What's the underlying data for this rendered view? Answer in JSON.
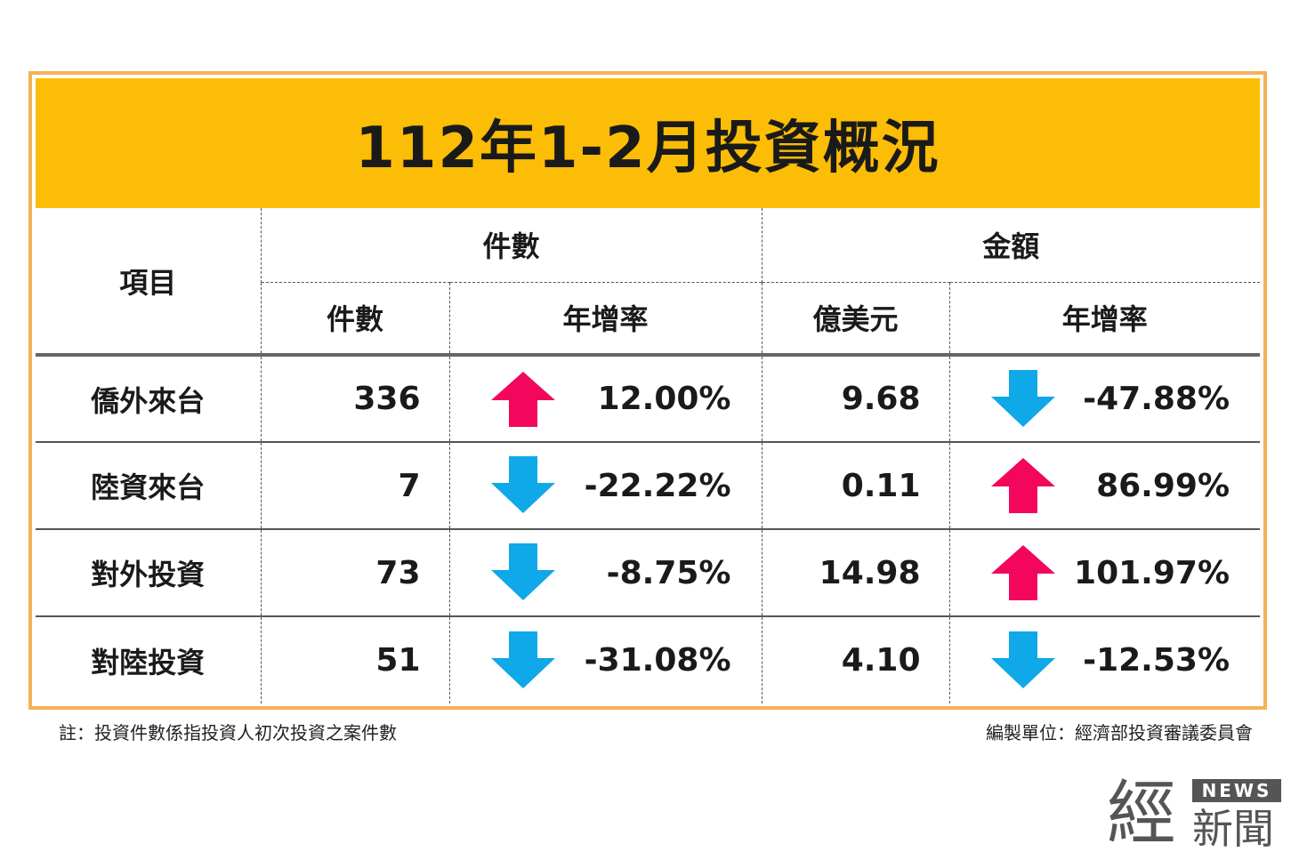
{
  "title": "112年1-2月投資概況",
  "headers": {
    "item": "項目",
    "group_count": "件數",
    "group_amount": "金額",
    "count": "件數",
    "count_rate": "年增率",
    "amount": "億美元",
    "amount_rate": "年增率"
  },
  "rows": [
    {
      "label": "僑外來台",
      "count": "336",
      "count_rate": "12.00%",
      "count_trend": "up",
      "amount": "9.68",
      "amount_rate": "-47.88%",
      "amount_trend": "down"
    },
    {
      "label": "陸資來台",
      "count": "7",
      "count_rate": "-22.22%",
      "count_trend": "down",
      "amount": "0.11",
      "amount_rate": "86.99%",
      "amount_trend": "up"
    },
    {
      "label": "對外投資",
      "count": "73",
      "count_rate": "-8.75%",
      "count_trend": "down",
      "amount": "14.98",
      "amount_rate": "101.97%",
      "amount_trend": "up"
    },
    {
      "label": "對陸投資",
      "count": "51",
      "count_rate": "-31.08%",
      "count_trend": "down",
      "amount": "4.10",
      "amount_rate": "-12.53%",
      "amount_trend": "down"
    }
  ],
  "notes": {
    "left": "註：投資件數係指投資人初次投資之案件數",
    "right": "編製單位：經濟部投資審議委員會"
  },
  "logo": {
    "main": "經",
    "badge": "NEWS",
    "sub": "新聞"
  },
  "colors": {
    "title_bg": "#fcbd06",
    "frame": "#f6b256",
    "up_arrow": "#f2075c",
    "down_arrow": "#0fa8e8"
  },
  "icons": {
    "up": "arrow-up-icon",
    "down": "arrow-down-icon"
  }
}
